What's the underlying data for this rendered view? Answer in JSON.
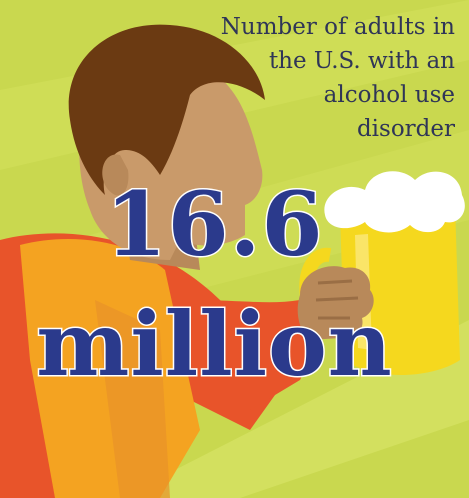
{
  "caption_lines": [
    "Number of adults in",
    "the U.S. with an",
    "alcohol use",
    "disorder"
  ],
  "stat_value": "16.6",
  "stat_unit": "million",
  "colors": {
    "background": "#c9d84f",
    "text_dark": "#2f3557",
    "stat_fill": "#2b3a8c",
    "stat_stroke": "#ffffff",
    "hair": "#6b3a12",
    "skin": "#c99a6a",
    "shirt": "#e8542a",
    "vest": "#f4a321",
    "beer": "#f5d81e",
    "foam": "#ffffff"
  }
}
